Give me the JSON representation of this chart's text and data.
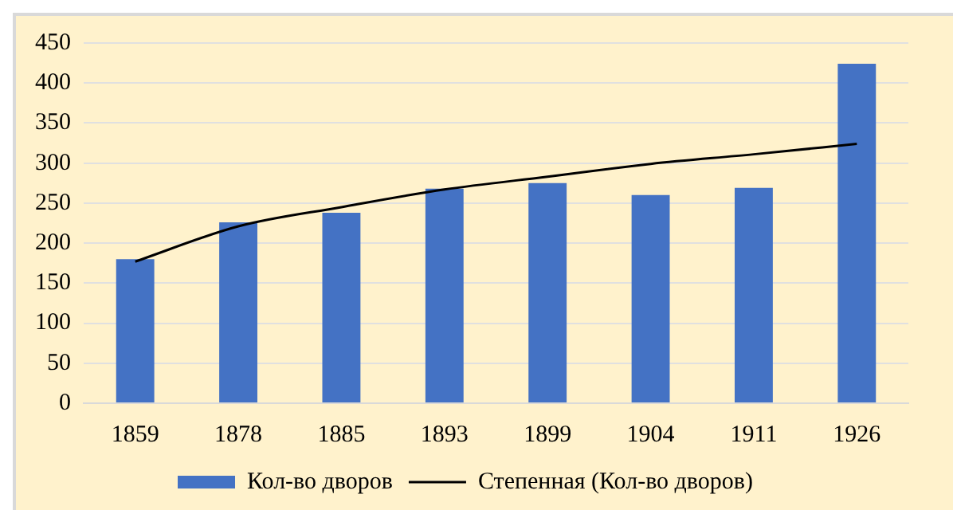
{
  "chart_data": {
    "type": "bar",
    "categories": [
      "1859",
      "1878",
      "1885",
      "1893",
      "1899",
      "1904",
      "1911",
      "1926"
    ],
    "series": [
      {
        "name": "Кол-во дворов",
        "color": "#4472c4",
        "values": [
          180,
          226,
          238,
          268,
          275,
          260,
          269,
          424
        ]
      },
      {
        "name": "Степенная (Кол-во дворов)",
        "type": "line",
        "color": "#000000",
        "values": [
          177,
          221,
          245,
          267,
          283,
          299,
          311,
          324
        ]
      }
    ],
    "ylim": [
      0,
      450
    ],
    "yticks": [
      0,
      50,
      100,
      150,
      200,
      250,
      300,
      350,
      400,
      450
    ],
    "grid": "y",
    "legend": "bottom",
    "marker": "none",
    "line_style": "solid"
  }
}
